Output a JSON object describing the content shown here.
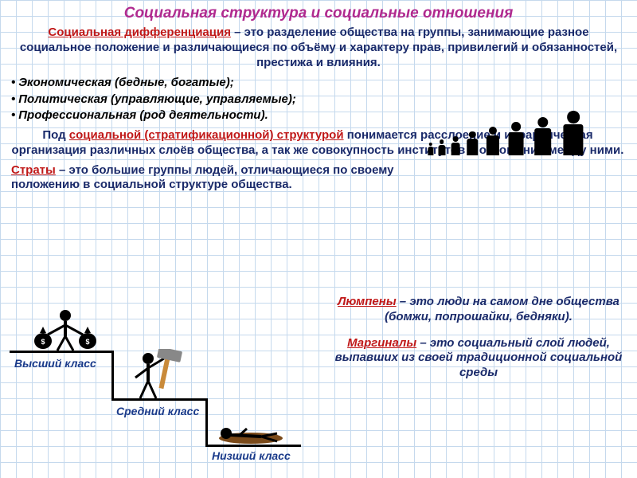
{
  "colors": {
    "title": "#b02a8f",
    "term": "#c01818",
    "body": "#1a2a6a",
    "bullet": "#000000",
    "stair_label": "#1a3a8a",
    "grid": "#c5d9ed",
    "bg": "#ffffff"
  },
  "title": "Социальная структура и социальные отношения",
  "diff": {
    "term": "Социальная дифференциация",
    "rest": " – это разделение общества на группы, занимающие разное социальное положение и различающиеся по объёму и характеру прав, привилегий и обязанностей, престижа и влияния."
  },
  "bullets": [
    "Экономическая (бедные, богатые);",
    "Политическая (управляющие, управляемые);",
    "Профессиональная (род деятельности)."
  ],
  "strat": {
    "pre": "Под ",
    "term": "социальной (стратификационной) структурой",
    "rest": " понимается расслоение и иерархическая организация различных слоёв общества, а так же совокупность институтов и отношений между ними."
  },
  "straty": {
    "term": "Страты",
    "rest": " – это большие группы людей, отличающиеся по своему положению в социальной структуре общества."
  },
  "stairs": {
    "top": "Высший класс",
    "mid": "Средний класс",
    "low": "Низший класс"
  },
  "lumpen": {
    "term": "Люмпены",
    "rest": " – это люди на самом дне общества (бомжи, попрошайки, бедняки)."
  },
  "marginal": {
    "term": "Маргиналы",
    "rest": " – это социальный слой людей, выпавших из своей традиционной социальной среды"
  },
  "people_row": {
    "count": 8,
    "heights": [
      16,
      20,
      24,
      30,
      36,
      42,
      48,
      56
    ]
  }
}
